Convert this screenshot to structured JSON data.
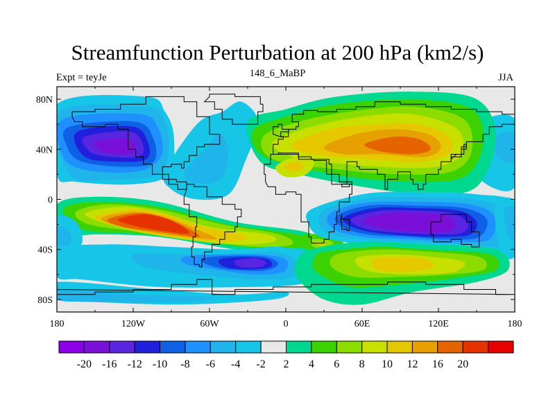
{
  "chart_data": {
    "type": "heatmap",
    "title": "Streamfunction Perturbation at 200 hPa (km2/s)",
    "left_subtitle": "Expt = teyJe",
    "center_subtitle": "148_6_MaBP",
    "right_subtitle": "JJA",
    "x_ticks": [
      "180",
      "120W",
      "60W",
      "0",
      "60E",
      "120E",
      "180"
    ],
    "x_tick_values": [
      -180,
      -120,
      -60,
      0,
      60,
      120,
      180
    ],
    "y_ticks": [
      "80N",
      "40N",
      "0",
      "40S",
      "80S"
    ],
    "y_tick_values": [
      80,
      40,
      0,
      -40,
      -80
    ],
    "xlim": [
      -180,
      180
    ],
    "ylim": [
      -90,
      90
    ],
    "colorbar": {
      "colors": [
        "#8a00e6",
        "#7a10d8",
        "#5a25e0",
        "#2020dc",
        "#1060e6",
        "#1e90ff",
        "#1fb4ea",
        "#17c6e6",
        "#e8e8e8",
        "#00d890",
        "#3bd200",
        "#8cdc00",
        "#c8e000",
        "#e6c800",
        "#e6a000",
        "#e66400",
        "#e63200",
        "#e60000"
      ],
      "labels": [
        "-20",
        "-16",
        "-12",
        "-10",
        "-8",
        "-6",
        "-4",
        "-2",
        "2",
        "4",
        "6",
        "8",
        "10",
        "12",
        "16",
        "20"
      ],
      "levels": [
        -20,
        -16,
        -12,
        -10,
        -8,
        -6,
        -4,
        -2,
        2,
        4,
        6,
        8,
        10,
        12,
        16,
        20
      ]
    },
    "anomalies": [
      {
        "name": "north-pacific-low",
        "lon": -125,
        "lat": 38,
        "peak": -18
      },
      {
        "name": "north-atlantic-tongue",
        "lon": -55,
        "lat": 30,
        "peak": -5
      },
      {
        "name": "eurasian-high",
        "lon": 75,
        "lat": 42,
        "peak": 14
      },
      {
        "name": "south-pacific-high",
        "lon": -100,
        "lat": -20,
        "peak": 21
      },
      {
        "name": "indian-ocean-low",
        "lon": 100,
        "lat": -20,
        "peak": -18
      },
      {
        "name": "south-atlantic-low",
        "lon": -15,
        "lat": -52,
        "peak": -12
      },
      {
        "name": "southern-indian-high",
        "lon": 80,
        "lat": -55,
        "peak": 8
      }
    ]
  }
}
